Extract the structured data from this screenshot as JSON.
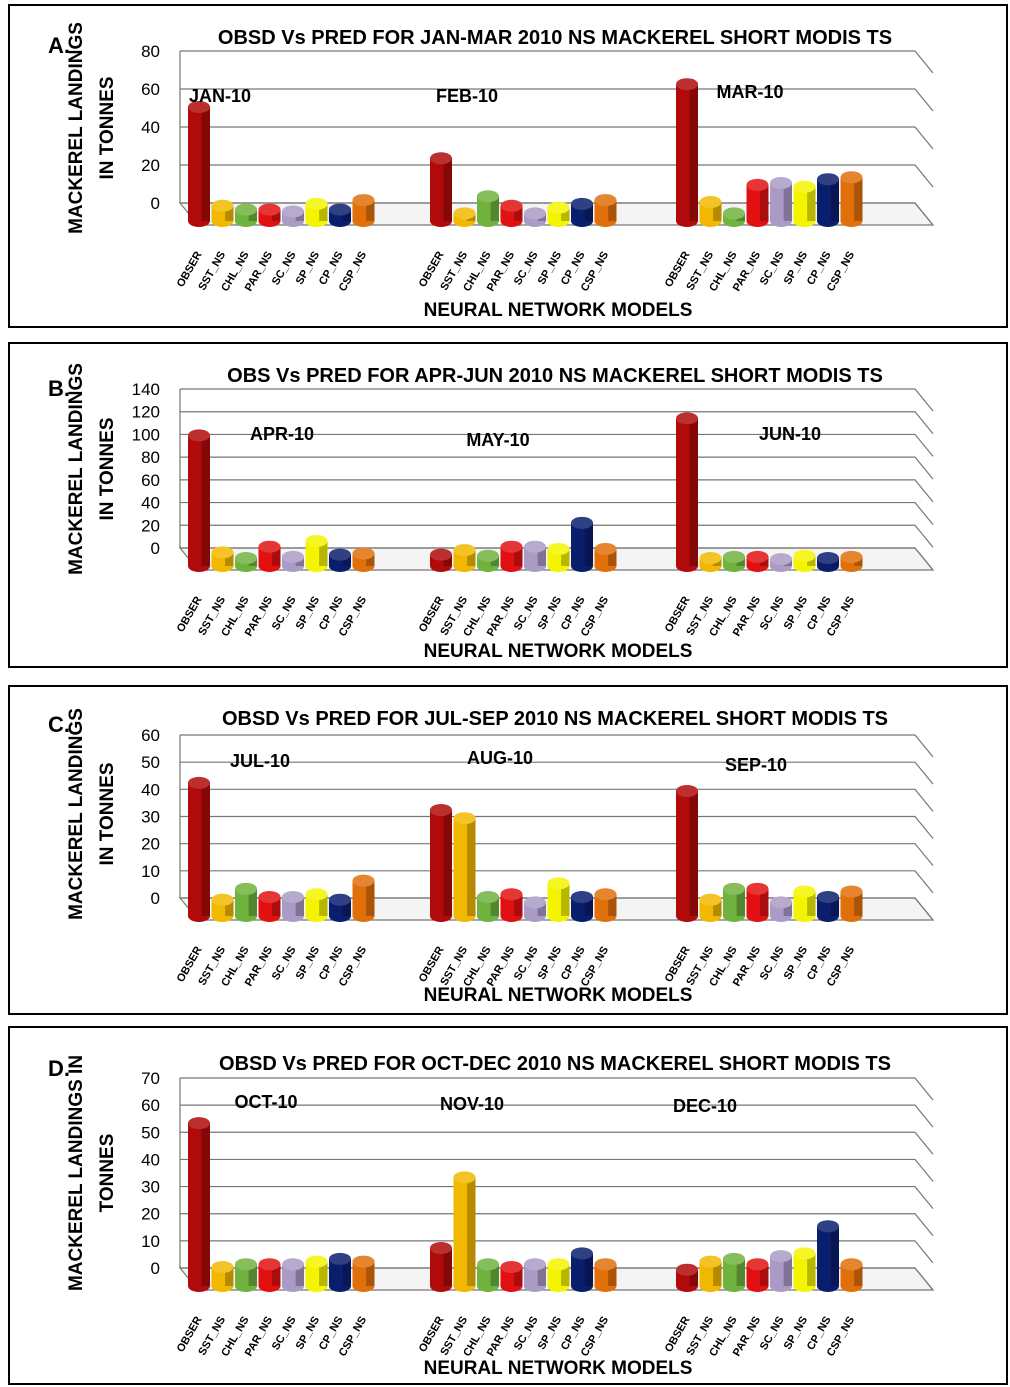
{
  "colors": {
    "OBSER": "#b00a0a",
    "SST_NS": "#f2b800",
    "CHL_NS": "#6fb33e",
    "PAR_NS": "#e21111",
    "SC_NS": "#a99bc6",
    "SP_NS": "#f4f400",
    "CP_NS": "#0a1e6e",
    "CSP_NS": "#e2700a"
  },
  "chart_data": [
    {
      "panel_label": "A.",
      "type": "bar",
      "title": "OBSD Vs PRED FOR JAN-MAR 2010 NS MACKEREL SHORT MODIS TS",
      "ylabel": [
        "MACKEREL LANDINGS",
        "IN TONNES"
      ],
      "xlabel": "NEURAL NETWORK MODELS",
      "ylim": [
        0,
        80
      ],
      "yticks": [
        0,
        20,
        40,
        60,
        80
      ],
      "categories": [
        "OBSER",
        "SST_NS",
        "CHL_NS",
        "PAR_NS",
        "SC_NS",
        "SP_NS",
        "CP_NS",
        "CSP_NS"
      ],
      "groups": [
        {
          "name": "JAN-10",
          "values": [
            60,
            8,
            6,
            6,
            5,
            9,
            6,
            11
          ]
        },
        {
          "name": "FEB-10",
          "values": [
            33,
            4,
            13,
            8,
            4,
            7,
            9,
            11
          ]
        },
        {
          "name": "MAR-10",
          "values": [
            72,
            10,
            4,
            19,
            20,
            18,
            22,
            23
          ]
        }
      ]
    },
    {
      "panel_label": "B.",
      "type": "bar",
      "title": "OBS Vs PRED FOR APR-JUN 2010 NS MACKEREL SHORT MODIS TS",
      "ylabel": [
        "MACKEREL LANDINGS",
        "IN TONNES"
      ],
      "xlabel": "NEURAL NETWORK MODELS",
      "ylim": [
        0,
        140
      ],
      "yticks": [
        0,
        20,
        40,
        60,
        80,
        100,
        120,
        140
      ],
      "categories": [
        "OBSER",
        "SST_NS",
        "CHL_NS",
        "PAR_NS",
        "SC_NS",
        "SP_NS",
        "CP_NS",
        "CSP_NS"
      ],
      "groups": [
        {
          "name": "APR-10",
          "values": [
            115,
            12,
            7,
            17,
            8,
            22,
            10,
            11
          ]
        },
        {
          "name": "MAY-10",
          "values": [
            10,
            14,
            9,
            17,
            17,
            15,
            38,
            15
          ]
        },
        {
          "name": "JUN-10",
          "values": [
            130,
            7,
            8,
            8,
            6,
            9,
            7,
            8
          ]
        }
      ]
    },
    {
      "panel_label": "C.",
      "type": "bar",
      "title": "OBSD Vs PRED FOR JUL-SEP 2010 NS MACKEREL SHORT MODIS TS",
      "ylabel": [
        "MACKEREL LANDINGS",
        "IN TONNES"
      ],
      "xlabel": "NEURAL NETWORK MODELS",
      "ylim": [
        0,
        60
      ],
      "yticks": [
        0,
        10,
        20,
        30,
        40,
        50,
        60
      ],
      "categories": [
        "OBSER",
        "SST_NS",
        "CHL_NS",
        "PAR_NS",
        "SC_NS",
        "SP_NS",
        "CP_NS",
        "CSP_NS"
      ],
      "groups": [
        {
          "name": "JUL-10",
          "values": [
            49,
            6,
            10,
            7,
            7,
            8,
            6,
            13
          ]
        },
        {
          "name": "AUG-10",
          "values": [
            39,
            36,
            7,
            8,
            5,
            12,
            7,
            8
          ]
        },
        {
          "name": "SEP-10",
          "values": [
            46,
            6,
            10,
            10,
            5,
            9,
            7,
            9
          ]
        }
      ]
    },
    {
      "panel_label": "D.",
      "type": "bar",
      "title": "OBSD Vs PRED FOR OCT-DEC 2010 NS MACKEREL SHORT MODIS TS",
      "ylabel": [
        "MACKEREL LANDINGS IN",
        "TONNES"
      ],
      "xlabel": "NEURAL NETWORK MODELS",
      "ylim": [
        0,
        70
      ],
      "yticks": [
        0,
        10,
        20,
        30,
        40,
        50,
        60,
        70
      ],
      "categories": [
        "OBSER",
        "SST_NS",
        "CHL_NS",
        "PAR_NS",
        "SC_NS",
        "SP_NS",
        "CP_NS",
        "CSP_NS"
      ],
      "groups": [
        {
          "name": "OCT-10",
          "values": [
            60,
            7,
            8,
            8,
            8,
            9,
            10,
            9
          ]
        },
        {
          "name": "NOV-10",
          "values": [
            14,
            40,
            8,
            7,
            8,
            8,
            12,
            8
          ]
        },
        {
          "name": "DEC-10",
          "values": [
            6,
            9,
            10,
            8,
            11,
            12,
            22,
            8
          ]
        }
      ]
    }
  ]
}
